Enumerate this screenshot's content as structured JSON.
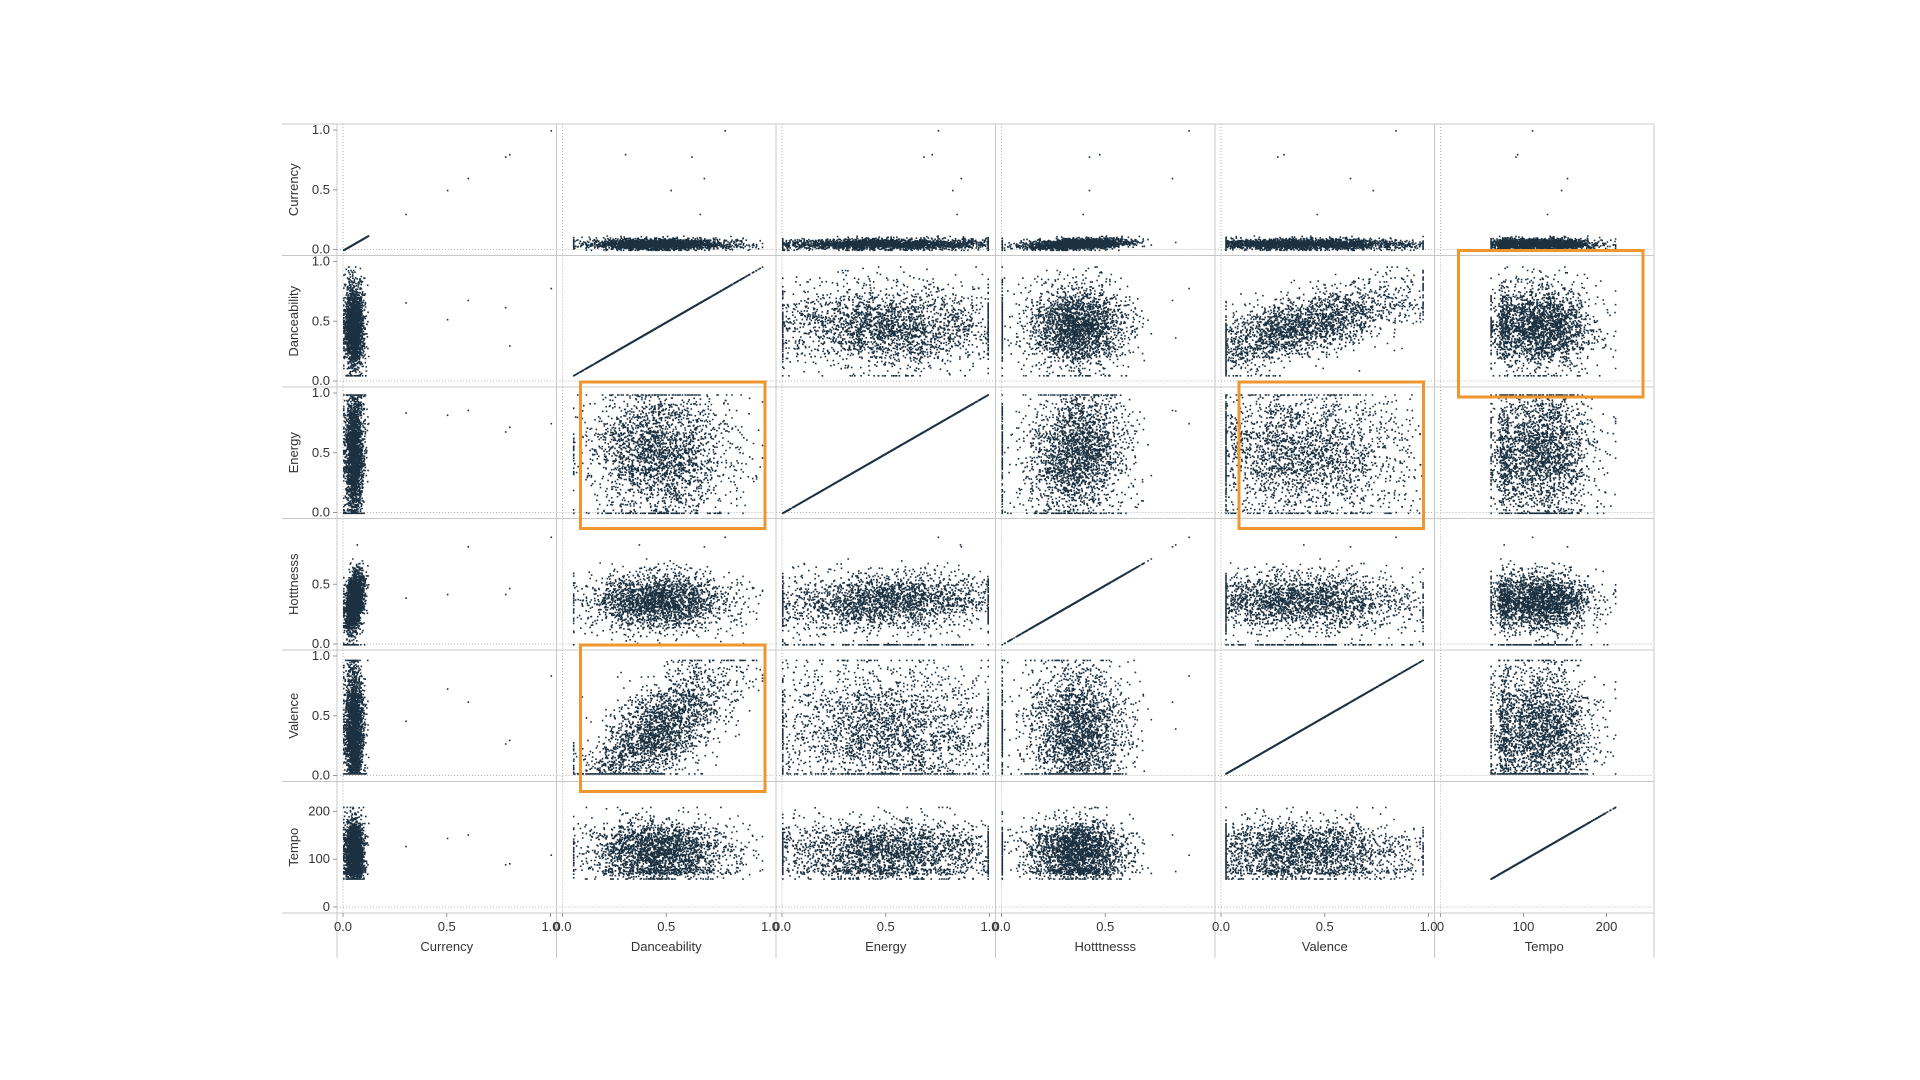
{
  "chart_data": {
    "type": "scatter",
    "kind": "scatterplot-matrix",
    "title": "",
    "grid": false,
    "reference_lines": "dotted lines at value 0",
    "point_color": "#1b3040",
    "highlight_color": "#f0962e",
    "variables": [
      {
        "key": "currency",
        "label": "Currency",
        "range": [
          0,
          1
        ],
        "ticks": [
          0,
          0.5,
          1
        ],
        "tick_labels": [
          "0.0",
          "0.5",
          "1.0"
        ]
      },
      {
        "key": "danceability",
        "label": "Danceability",
        "range": [
          0,
          1
        ],
        "ticks": [
          0,
          0.5,
          1
        ],
        "tick_labels": [
          "0.0",
          "0.5",
          "1.0"
        ]
      },
      {
        "key": "energy",
        "label": "Energy",
        "range": [
          0,
          1
        ],
        "ticks": [
          0,
          0.5,
          1
        ],
        "tick_labels": [
          "0.0",
          "0.5",
          "1.0"
        ]
      },
      {
        "key": "hotttnesss",
        "label": "Hotttnesss",
        "range": [
          0,
          1
        ],
        "ticks": [
          0,
          0.5
        ],
        "tick_labels": [
          "0.0",
          "0.5"
        ]
      },
      {
        "key": "valence",
        "label": "Valence",
        "range": [
          0,
          1
        ],
        "ticks": [
          0,
          0.5,
          1
        ],
        "tick_labels": [
          "0.0",
          "0.5",
          "1.0"
        ]
      },
      {
        "key": "tempo",
        "label": "Tempo",
        "range": [
          0,
          250
        ],
        "ticks": [
          0,
          100,
          200
        ],
        "tick_labels": [
          "0",
          "100",
          "200"
        ]
      }
    ],
    "highlighted_cells": [
      {
        "row": "Danceability",
        "col": "Tempo"
      },
      {
        "row": "Energy",
        "col": "Danceability"
      },
      {
        "row": "Energy",
        "col": "Valence"
      },
      {
        "row": "Valence",
        "col": "Danceability"
      }
    ]
  }
}
